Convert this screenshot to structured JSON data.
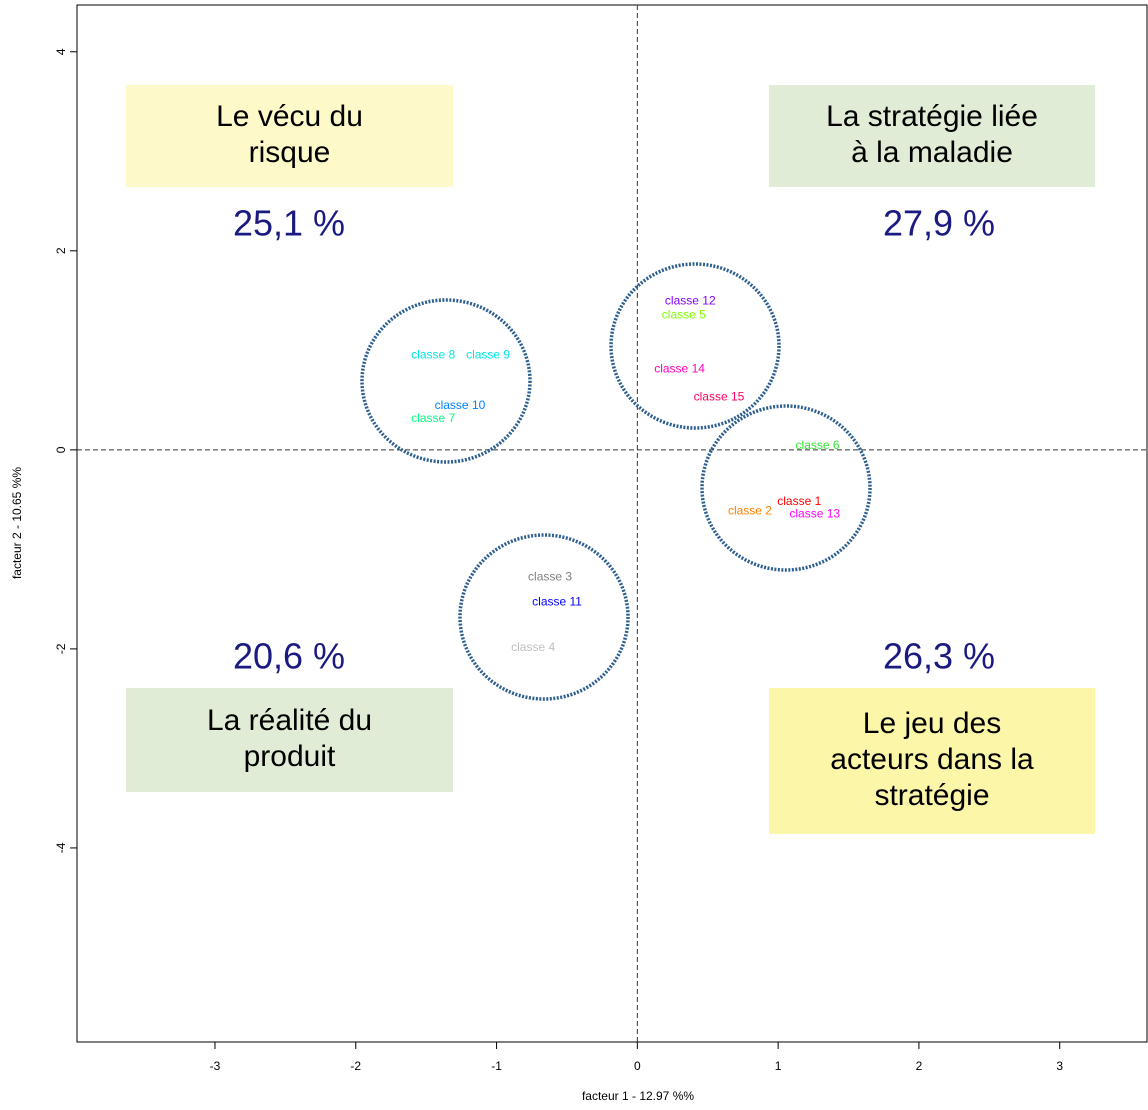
{
  "chart_data": {
    "type": "scatter",
    "xlabel": "facteur  1  - 12.97 %%",
    "ylabel": "facteur  2  - 10.65 %%",
    "xlim": [
      -3.98,
      3.62
    ],
    "ylim": [
      -5.95,
      4.47
    ],
    "xticks": [
      -3,
      -2,
      -1,
      0,
      1,
      2,
      3
    ],
    "yticks": [
      -4,
      -2,
      0,
      2,
      4
    ],
    "labels": [
      "classe 12",
      "classe 5",
      "classe 8",
      "classe 9",
      "classe 10",
      "classe 7",
      "classe 14",
      "classe 15",
      "classe 6",
      "classe 1",
      "classe 2",
      "classe 13",
      "classe 3",
      "classe 11",
      "classe 4"
    ],
    "x": [
      0.376,
      0.33,
      -1.45,
      -1.06,
      -1.26,
      -1.45,
      0.3,
      0.58,
      1.28,
      1.15,
      0.8,
      1.26,
      -0.62,
      -0.57,
      -0.74
    ],
    "y": [
      1.49,
      1.35,
      0.95,
      0.95,
      0.44,
      0.31,
      0.81,
      0.53,
      0.04,
      -0.52,
      -0.62,
      -0.65,
      -1.28,
      -1.53,
      -1.99
    ],
    "colors": [
      "#8000ff",
      "#80ff00",
      "#00e5e5",
      "#00e5e5",
      "#0080ff",
      "#00ff80",
      "#ff00c0",
      "#ff0060",
      "#33e633",
      "#ff0000",
      "#ff8000",
      "#ff00ff",
      "#808080",
      "#0000ff",
      "#c0c0c0"
    ],
    "annotations": [
      {
        "lines": [
          "Le vécu du",
          "risque"
        ],
        "percent": "25,1 %"
      },
      {
        "lines": [
          "La stratégie liée",
          "à la maladie"
        ],
        "percent": "27,9 %"
      },
      {
        "lines": [
          "La réalité du",
          "produit"
        ],
        "percent": "20,6 %"
      },
      {
        "lines": [
          "Le jeu des",
          "acteurs dans la",
          "stratégie"
        ],
        "percent": "26,3 %"
      }
    ]
  }
}
